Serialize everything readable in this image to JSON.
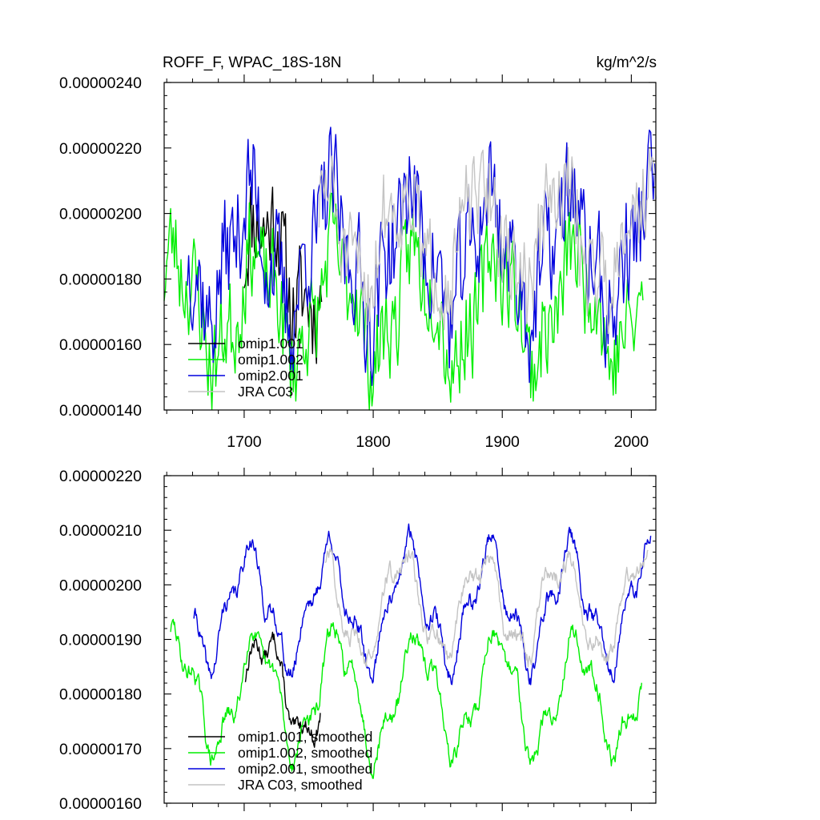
{
  "chart_data": [
    {
      "type": "line",
      "title": "ROFF_F, WPAC_18S-18N",
      "units": "kg/m^2/s",
      "xlim": [
        1638,
        2019
      ],
      "ylim": [
        1.4e-06,
        2.4e-06
      ],
      "x_ticks": [
        1700,
        1800,
        1900,
        2000
      ],
      "x_tick_labels": [
        "1700",
        "1800",
        "1900",
        "2000"
      ],
      "y_ticks": [
        1.4e-06,
        1.6e-06,
        1.8e-06,
        2e-06,
        2.2e-06,
        2.4e-06
      ],
      "y_tick_labels": [
        "0.00000140",
        "0.00000160",
        "0.00000180",
        "0.00000200",
        "0.00000220",
        "0.00000240"
      ],
      "legend_position": "bottom-left",
      "series": [
        {
          "name": "omip1.001",
          "color": "#000000",
          "x_range": [
            1700,
            1760
          ],
          "mean": 1.85e-06,
          "amplitude": 2e-07,
          "noise": 1.5e-07,
          "seed": 11
        },
        {
          "name": "omip1.002",
          "color": "#00ee00",
          "x_range": [
            1638,
            2009
          ],
          "mean": 1.72e-06,
          "amplitude": 2e-07,
          "noise": 1.4e-07,
          "seed": 23
        },
        {
          "name": "omip2.001",
          "color": "#0000dd",
          "x_range": [
            1656,
            2019
          ],
          "mean": 1.88e-06,
          "amplitude": 2.2e-07,
          "noise": 1.6e-07,
          "seed": 37
        },
        {
          "name": "JRA C03",
          "color": "#c4c4c4",
          "x_range": [
            1758,
            2019
          ],
          "mean": 1.93e-06,
          "amplitude": 1.8e-07,
          "noise": 1.3e-07,
          "seed": 51
        }
      ]
    },
    {
      "type": "line",
      "title": "",
      "xlim": [
        1638,
        2019
      ],
      "ylim": [
        1.6e-06,
        2.2e-06
      ],
      "x_ticks": [
        1700,
        1800,
        1900,
        2000
      ],
      "x_tick_labels": [],
      "y_ticks": [
        1.6e-06,
        1.7e-06,
        1.8e-06,
        1.9e-06,
        2e-06,
        2.1e-06,
        2.2e-06
      ],
      "y_tick_labels": [
        "0.00000160",
        "0.00000170",
        "0.00000180",
        "0.00000190",
        "0.00000200",
        "0.00000210",
        "0.00000220"
      ],
      "legend_position": "bottom-left",
      "series": [
        {
          "name": "omip1.001, smoothed",
          "color": "#000000",
          "x_range": [
            1701,
            1759
          ],
          "mean": 1.81e-06,
          "amplitude": 1.2e-07,
          "noise": 2e-08,
          "seed": 13
        },
        {
          "name": "omip1.002, smoothed",
          "color": "#00ee00",
          "x_range": [
            1643,
            2008
          ],
          "mean": 1.8e-06,
          "amplitude": 1.3e-07,
          "noise": 2e-08,
          "seed": 29
        },
        {
          "name": "omip2.001, smoothed",
          "color": "#0000dd",
          "x_range": [
            1661,
            2015
          ],
          "mean": 1.96e-06,
          "amplitude": 1.3e-07,
          "noise": 2e-08,
          "seed": 41
        },
        {
          "name": "JRA C03, smoothed",
          "color": "#c4c4c4",
          "x_range": [
            1763,
            2013
          ],
          "mean": 1.96e-06,
          "amplitude": 1.1e-07,
          "noise": 2e-08,
          "seed": 57
        }
      ]
    }
  ]
}
